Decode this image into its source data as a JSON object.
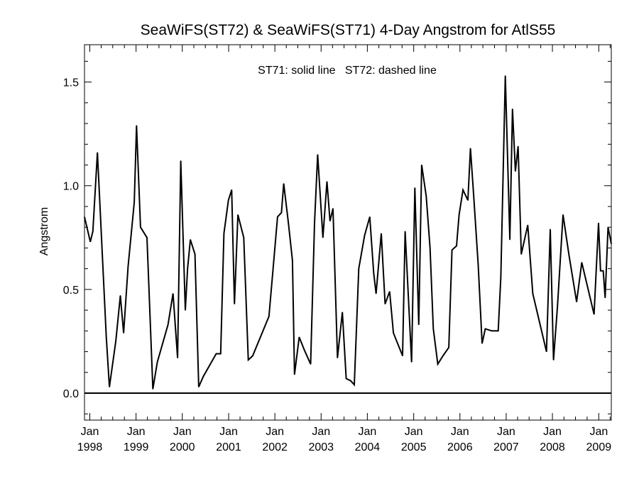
{
  "chart_data": {
    "type": "line",
    "title": "SeaWiFS(ST72) & SeaWiFS(ST71) 4-Day Angstrom for AtlS55",
    "annotation": "ST71: solid line   ST72: dashed line",
    "ylabel": "Angstrom",
    "xlabel": "",
    "xlim": [
      "1997-11-20",
      "2009-04-10"
    ],
    "ylim": [
      -0.13,
      1.68
    ],
    "yticks": [
      0.0,
      0.5,
      1.0,
      1.5
    ],
    "ytick_labels": [
      "0.0",
      "0.5",
      "1.0",
      "1.5"
    ],
    "xticks": [
      "1998-01-01",
      "1999-01-01",
      "2000-01-01",
      "2001-01-01",
      "2002-01-01",
      "2003-01-01",
      "2004-01-01",
      "2005-01-01",
      "2006-01-01",
      "2007-01-01",
      "2008-01-01",
      "2009-01-01"
    ],
    "xtick_labels": [
      [
        "Jan",
        "1998"
      ],
      [
        "Jan",
        "1999"
      ],
      [
        "Jan",
        "2000"
      ],
      [
        "Jan",
        "2001"
      ],
      [
        "Jan",
        "2002"
      ],
      [
        "Jan",
        "2003"
      ],
      [
        "Jan",
        "2004"
      ],
      [
        "Jan",
        "2005"
      ],
      [
        "Jan",
        "2006"
      ],
      [
        "Jan",
        "2007"
      ],
      [
        "Jan",
        "2008"
      ],
      [
        "Jan",
        "2009"
      ]
    ],
    "grid": false,
    "series": [
      {
        "name": "ST71",
        "style": "solid",
        "color": "#000000",
        "points": [
          [
            "1997-11-20",
            0.85
          ],
          [
            "1998-01-05",
            0.73
          ],
          [
            "1998-01-25",
            0.78
          ],
          [
            "1998-03-02",
            1.16
          ],
          [
            "1998-05-11",
            0.27
          ],
          [
            "1998-06-05",
            0.03
          ],
          [
            "1998-07-25",
            0.25
          ],
          [
            "1998-08-30",
            0.47
          ],
          [
            "1998-09-25",
            0.29
          ],
          [
            "1998-10-30",
            0.61
          ],
          [
            "1998-12-18",
            0.92
          ],
          [
            "1999-01-05",
            1.29
          ],
          [
            "1999-02-05",
            0.8
          ],
          [
            "1999-03-28",
            0.75
          ],
          [
            "1999-05-14",
            0.02
          ],
          [
            "1999-06-18",
            0.15
          ],
          [
            "1999-09-10",
            0.33
          ],
          [
            "1999-10-20",
            0.48
          ],
          [
            "1999-11-25",
            0.17
          ],
          [
            "1999-12-20",
            1.12
          ],
          [
            "2000-01-25",
            0.4
          ],
          [
            "2000-02-12",
            0.6
          ],
          [
            "2000-03-05",
            0.74
          ],
          [
            "2000-04-10",
            0.67
          ],
          [
            "2000-05-10",
            0.03
          ],
          [
            "2000-06-15",
            0.08
          ],
          [
            "2000-09-25",
            0.19
          ],
          [
            "2000-10-30",
            0.19
          ],
          [
            "2000-11-25",
            0.77
          ],
          [
            "2000-12-30",
            0.93
          ],
          [
            "2001-01-25",
            0.98
          ],
          [
            "2001-02-16",
            0.43
          ],
          [
            "2001-03-15",
            0.86
          ],
          [
            "2001-04-30",
            0.75
          ],
          [
            "2001-06-05",
            0.16
          ],
          [
            "2001-07-10",
            0.18
          ],
          [
            "2001-11-15",
            0.37
          ],
          [
            "2001-12-28",
            0.67
          ],
          [
            "2002-01-22",
            0.85
          ],
          [
            "2002-02-22",
            0.87
          ],
          [
            "2002-03-12",
            1.01
          ],
          [
            "2002-04-18",
            0.82
          ],
          [
            "2002-05-20",
            0.64
          ],
          [
            "2002-06-05",
            0.09
          ],
          [
            "2002-07-12",
            0.27
          ],
          [
            "2002-08-20",
            0.21
          ],
          [
            "2002-10-10",
            0.14
          ],
          [
            "2002-11-10",
            0.82
          ],
          [
            "2002-12-05",
            1.15
          ],
          [
            "2003-01-15",
            0.75
          ],
          [
            "2003-02-16",
            1.02
          ],
          [
            "2003-03-12",
            0.83
          ],
          [
            "2003-04-05",
            0.89
          ],
          [
            "2003-05-10",
            0.17
          ],
          [
            "2003-06-18",
            0.39
          ],
          [
            "2003-07-18",
            0.07
          ],
          [
            "2003-08-22",
            0.06
          ],
          [
            "2003-09-20",
            0.04
          ],
          [
            "2003-10-25",
            0.6
          ],
          [
            "2003-12-10",
            0.76
          ],
          [
            "2004-01-20",
            0.85
          ],
          [
            "2004-02-20",
            0.58
          ],
          [
            "2004-03-10",
            0.48
          ],
          [
            "2004-04-20",
            0.77
          ],
          [
            "2004-05-20",
            0.43
          ],
          [
            "2004-06-25",
            0.49
          ],
          [
            "2004-07-25",
            0.29
          ],
          [
            "2004-10-05",
            0.18
          ],
          [
            "2004-10-25",
            0.78
          ],
          [
            "2004-12-15",
            0.15
          ],
          [
            "2005-01-10",
            0.99
          ],
          [
            "2005-02-10",
            0.33
          ],
          [
            "2005-03-05",
            1.1
          ],
          [
            "2005-04-10",
            0.95
          ],
          [
            "2005-05-10",
            0.7
          ],
          [
            "2005-06-05",
            0.31
          ],
          [
            "2005-07-10",
            0.14
          ],
          [
            "2005-08-20",
            0.18
          ],
          [
            "2005-10-05",
            0.22
          ],
          [
            "2005-10-30",
            0.69
          ],
          [
            "2005-12-05",
            0.71
          ],
          [
            "2005-12-25",
            0.86
          ],
          [
            "2006-01-25",
            0.98
          ],
          [
            "2006-03-05",
            0.93
          ],
          [
            "2006-03-25",
            1.18
          ],
          [
            "2006-04-20",
            0.95
          ],
          [
            "2006-05-25",
            0.62
          ],
          [
            "2006-06-25",
            0.24
          ],
          [
            "2006-07-20",
            0.31
          ],
          [
            "2006-09-10",
            0.3
          ],
          [
            "2006-10-30",
            0.3
          ],
          [
            "2006-11-20",
            0.56
          ],
          [
            "2006-12-25",
            1.53
          ],
          [
            "2007-01-30",
            0.74
          ],
          [
            "2007-02-20",
            1.37
          ],
          [
            "2007-03-15",
            1.07
          ],
          [
            "2007-04-05",
            1.19
          ],
          [
            "2007-04-30",
            0.67
          ],
          [
            "2007-06-20",
            0.81
          ],
          [
            "2007-07-30",
            0.48
          ],
          [
            "2007-11-15",
            0.2
          ],
          [
            "2007-12-15",
            0.79
          ],
          [
            "2008-01-10",
            0.16
          ],
          [
            "2008-02-10",
            0.42
          ],
          [
            "2008-03-25",
            0.86
          ],
          [
            "2008-05-10",
            0.67
          ],
          [
            "2008-07-10",
            0.44
          ],
          [
            "2008-08-20",
            0.63
          ],
          [
            "2008-11-25",
            0.38
          ],
          [
            "2008-12-30",
            0.82
          ],
          [
            "2009-01-15",
            0.59
          ],
          [
            "2009-02-05",
            0.59
          ],
          [
            "2009-02-20",
            0.46
          ],
          [
            "2009-03-15",
            0.8
          ],
          [
            "2009-04-10",
            0.72
          ]
        ]
      }
    ],
    "reference_line": {
      "y": 0.0,
      "color": "#000000"
    }
  }
}
